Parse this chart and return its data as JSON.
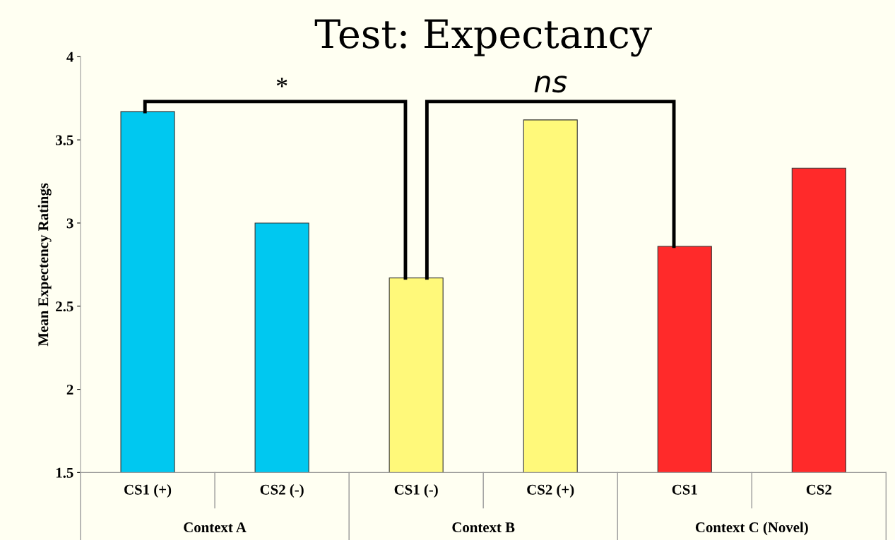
{
  "chart_data": {
    "type": "bar",
    "title": "Test: Expectancy",
    "ylabel": "Mean Expectency Ratings",
    "categories": [
      "CS1 (+)",
      "CS2 (-)",
      "CS1 (-)",
      "CS2 (+)",
      "CS1",
      "CS2"
    ],
    "values": [
      3.67,
      3.0,
      2.67,
      3.62,
      2.86,
      3.33
    ],
    "colors": [
      "#00c8f0",
      "#00c8f0",
      "#fff97a",
      "#fff97a",
      "#ff2a2a",
      "#ff2a2a"
    ],
    "ylim": [
      1.5,
      4
    ],
    "yticks": [
      1.5,
      2,
      2.5,
      3,
      3.5,
      4
    ],
    "grid": false,
    "legend": false,
    "annotations": [
      "*",
      "ns",
      "Context A",
      "Context B",
      "Context C (Novel)"
    ]
  }
}
